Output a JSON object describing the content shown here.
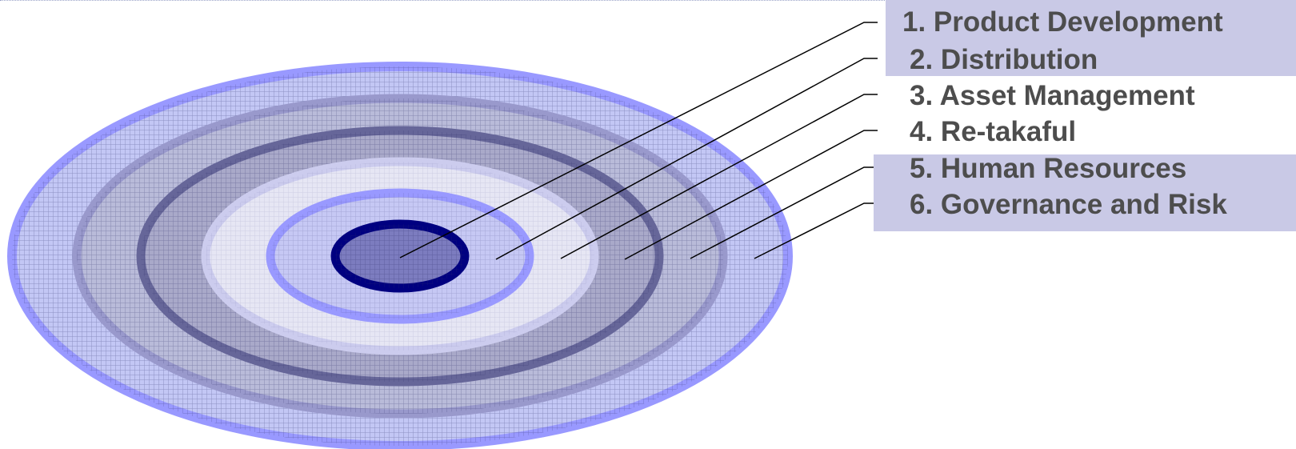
{
  "labels": [
    {
      "text": "1. Product Development"
    },
    {
      "text": "2. Distribution"
    },
    {
      "text": "3. Asset Management"
    },
    {
      "text": "4. Re-takaful"
    },
    {
      "text": "5. Human Resources"
    },
    {
      "text": "6. Governance and Risk"
    }
  ],
  "colors": {
    "outer_ring": "#9999ff",
    "second_ring": "#9999cc",
    "third_ring": "#666699",
    "fourth_ring": "#ccccee",
    "fifth_ring": "#9999ff",
    "core_ring": "#000080",
    "label_box": "#c9c9e6",
    "label_text": "#4d4d4d"
  }
}
